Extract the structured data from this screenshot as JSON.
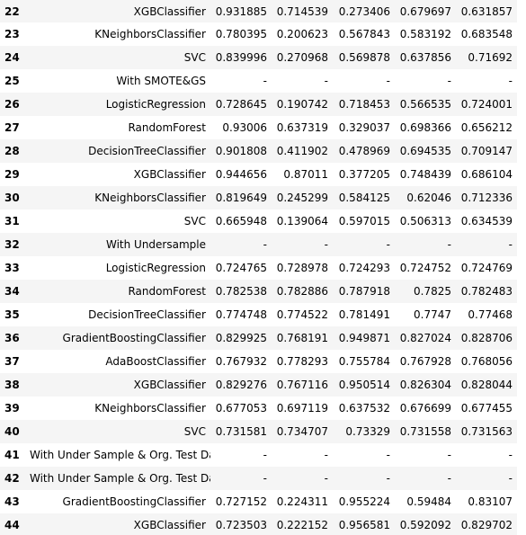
{
  "table": {
    "rows": [
      {
        "index": "22",
        "name": "XGBClassifier",
        "values": [
          "0.931885",
          "0.714539",
          "0.273406",
          "0.679697",
          "0.631857"
        ]
      },
      {
        "index": "23",
        "name": "KNeighborsClassifier",
        "values": [
          "0.780395",
          "0.200623",
          "0.567843",
          "0.583192",
          "0.683548"
        ]
      },
      {
        "index": "24",
        "name": "SVC",
        "values": [
          "0.839996",
          "0.270968",
          "0.569878",
          "0.637856",
          "0.71692"
        ]
      },
      {
        "index": "25",
        "name": "With SMOTE&GS",
        "values": [
          "-",
          "-",
          "-",
          "-",
          "-"
        ]
      },
      {
        "index": "26",
        "name": "LogisticRegression",
        "values": [
          "0.728645",
          "0.190742",
          "0.718453",
          "0.566535",
          "0.724001"
        ]
      },
      {
        "index": "27",
        "name": "RandomForest",
        "values": [
          "0.93006",
          "0.637319",
          "0.329037",
          "0.698366",
          "0.656212"
        ]
      },
      {
        "index": "28",
        "name": "DecisionTreeClassifier",
        "values": [
          "0.901808",
          "0.411902",
          "0.478969",
          "0.694535",
          "0.709147"
        ]
      },
      {
        "index": "29",
        "name": "XGBClassifier",
        "values": [
          "0.944656",
          "0.87011",
          "0.377205",
          "0.748439",
          "0.686104"
        ]
      },
      {
        "index": "30",
        "name": "KNeighborsClassifier",
        "values": [
          "0.819649",
          "0.245299",
          "0.584125",
          "0.62046",
          "0.712336"
        ]
      },
      {
        "index": "31",
        "name": "SVC",
        "values": [
          "0.665948",
          "0.139064",
          "0.597015",
          "0.506313",
          "0.634539"
        ]
      },
      {
        "index": "32",
        "name": "With Undersample",
        "values": [
          "-",
          "-",
          "-",
          "-",
          "-"
        ]
      },
      {
        "index": "33",
        "name": "LogisticRegression",
        "values": [
          "0.724765",
          "0.728978",
          "0.724293",
          "0.724752",
          "0.724769"
        ]
      },
      {
        "index": "34",
        "name": "RandomForest",
        "values": [
          "0.782538",
          "0.782886",
          "0.787918",
          "0.7825",
          "0.782483"
        ]
      },
      {
        "index": "35",
        "name": "DecisionTreeClassifier",
        "values": [
          "0.774748",
          "0.774522",
          "0.781491",
          "0.7747",
          "0.77468"
        ]
      },
      {
        "index": "36",
        "name": "GradientBoostingClassifier",
        "values": [
          "0.829925",
          "0.768191",
          "0.949871",
          "0.827024",
          "0.828706"
        ]
      },
      {
        "index": "37",
        "name": "AdaBoostClassifier",
        "values": [
          "0.767932",
          "0.778293",
          "0.755784",
          "0.767928",
          "0.768056"
        ]
      },
      {
        "index": "38",
        "name": "XGBClassifier",
        "values": [
          "0.829276",
          "0.767116",
          "0.950514",
          "0.826304",
          "0.828044"
        ]
      },
      {
        "index": "39",
        "name": "KNeighborsClassifier",
        "values": [
          "0.677053",
          "0.697119",
          "0.637532",
          "0.676699",
          "0.677455"
        ]
      },
      {
        "index": "40",
        "name": "SVC",
        "values": [
          "0.731581",
          "0.734707",
          "0.73329",
          "0.731558",
          "0.731563"
        ]
      },
      {
        "index": "41",
        "name": "With Under Sample & Org. Test Data",
        "values": [
          "-",
          "-",
          "-",
          "-",
          "-"
        ]
      },
      {
        "index": "42",
        "name": "With Under Sample & Org. Test Data",
        "values": [
          "-",
          "-",
          "-",
          "-",
          "-"
        ]
      },
      {
        "index": "43",
        "name": "GradientBoostingClassifier",
        "values": [
          "0.727152",
          "0.224311",
          "0.955224",
          "0.59484",
          "0.83107"
        ]
      },
      {
        "index": "44",
        "name": "XGBClassifier",
        "values": [
          "0.723503",
          "0.222152",
          "0.956581",
          "0.592092",
          "0.829702"
        ]
      }
    ]
  }
}
